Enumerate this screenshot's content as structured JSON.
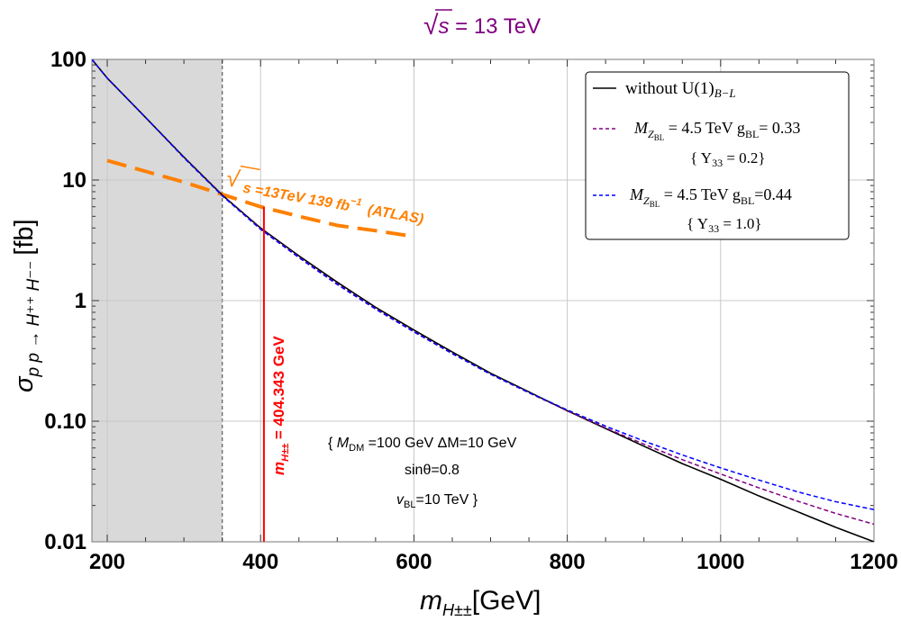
{
  "chart_data": {
    "type": "line",
    "title_sqrt_symbol": "√",
    "title_s": "s",
    "title_rest": " = 13 TeV",
    "xlabel_main": "m",
    "xlabel_sub": "H±±",
    "xlabel_unit": "[GeV]",
    "ylabel_sigma": "σ",
    "ylabel_sub": "p p → H⁺⁺ H⁻⁻",
    "ylabel_unit": "[fb]",
    "xlim": [
      180,
      1200
    ],
    "ylim": [
      0.01,
      100
    ],
    "yscale": "log",
    "grid": true,
    "x_ticks": [
      {
        "value": 200,
        "label": "200"
      },
      {
        "value": 400,
        "label": "400"
      },
      {
        "value": 600,
        "label": "600"
      },
      {
        "value": 800,
        "label": "800"
      },
      {
        "value": 1000,
        "label": "1000"
      },
      {
        "value": 1200,
        "label": "1200"
      }
    ],
    "y_ticks": [
      {
        "value": 0.01,
        "label": "0.01"
      },
      {
        "value": 0.1,
        "label": "0.10"
      },
      {
        "value": 1,
        "label": "1"
      },
      {
        "value": 10,
        "label": "10"
      },
      {
        "value": 100,
        "label": "100"
      }
    ],
    "excluded_region": {
      "x_min": 180,
      "x_max": 350
    },
    "series": [
      {
        "name": "without U(1)_{B−L}",
        "color": "#000000",
        "style": "solid",
        "x": [
          180,
          200,
          250,
          300,
          350,
          400,
          450,
          500,
          550,
          600,
          650,
          700,
          750,
          800,
          850,
          900,
          950,
          1000,
          1050,
          1100,
          1150,
          1200
        ],
        "y": [
          100,
          70,
          33,
          15.5,
          7.5,
          4.0,
          2.35,
          1.42,
          0.88,
          0.57,
          0.375,
          0.25,
          0.175,
          0.122,
          0.087,
          0.062,
          0.0445,
          0.033,
          0.024,
          0.0178,
          0.0132,
          0.01
        ]
      },
      {
        "name": "M_ZBL = 4.5 TeV g_BL = 0.33 {Y33 = 0.2}",
        "color": "#800080",
        "style": "dashed",
        "x": [
          180,
          200,
          250,
          300,
          350,
          400,
          450,
          500,
          550,
          600,
          650,
          700,
          750,
          800,
          850,
          900,
          950,
          1000,
          1050,
          1100,
          1150,
          1200
        ],
        "y": [
          100,
          70,
          33,
          15.4,
          7.45,
          3.95,
          2.3,
          1.38,
          0.86,
          0.555,
          0.365,
          0.245,
          0.172,
          0.122,
          0.088,
          0.0645,
          0.048,
          0.0365,
          0.028,
          0.0218,
          0.0172,
          0.014
        ]
      },
      {
        "name": "M_ZBL = 4.5 TeV g_BL=0.44 {Y33 = 1.0}",
        "color": "#0000ff",
        "style": "dashed",
        "x": [
          180,
          200,
          250,
          300,
          350,
          400,
          450,
          500,
          550,
          600,
          650,
          700,
          750,
          800,
          850,
          900,
          950,
          1000,
          1050,
          1100,
          1150,
          1200
        ],
        "y": [
          100,
          70,
          33,
          15.3,
          7.4,
          3.9,
          2.27,
          1.36,
          0.85,
          0.55,
          0.363,
          0.245,
          0.173,
          0.124,
          0.091,
          0.0685,
          0.0525,
          0.041,
          0.0325,
          0.026,
          0.0215,
          0.0185
        ]
      },
      {
        "name": "ATLAS √s=13TeV 139 fb⁻¹",
        "color": "#ff8000",
        "style": "dashed-thick",
        "x": [
          200,
          250,
          300,
          350,
          400,
          450,
          500,
          550,
          600
        ],
        "y": [
          14.5,
          11.8,
          9.6,
          7.6,
          6.0,
          5.0,
          4.2,
          3.8,
          3.4
        ]
      }
    ],
    "vertical_line": {
      "x": 404.343,
      "y_top": 6.0,
      "color": "#ff0000"
    },
    "annotations": {
      "atlas_sqrt": "√",
      "atlas_label": "s =13TeV 139 fb",
      "atlas_sup": "−1",
      "atlas_tag": "(ATLAS)",
      "mass_label_m": "m",
      "mass_label_sub": "H±±",
      "mass_label_value": " = 404.343 GeV",
      "param_line1_open": "{ ",
      "param_line1_M": "M",
      "param_line1_Msub": "DM",
      "param_line1_rest": " =100 GeV   ΔM=10 GeV",
      "param_line2": "sinθ=0.8",
      "param_line3_v": "v",
      "param_line3_sub": "BL",
      "param_line3_rest": "=10 TeV }"
    },
    "legend": {
      "position": "top-right",
      "entries": [
        {
          "line1": "without U(1)",
          "line1_sub": "B−L",
          "line2": ""
        },
        {
          "line1": "M",
          "line1_sub": "Z",
          "line1_subsub": "BL",
          "line1_rest": " = 4.5 TeV g",
          "line1_gsub": "BL",
          "line1_tail": "= 0.33",
          "line2": "{ Y",
          "line2_sub": "33",
          "line2_rest": " = 0.2}"
        },
        {
          "line1": "M",
          "line1_sub": "Z",
          "line1_subsub": "BL",
          "line1_rest": " = 4.5 TeV g",
          "line1_gsub": "BL",
          "line1_tail": "=0.44",
          "line2": "{ Y",
          "line2_sub": "33",
          "line2_rest": " = 1.0}"
        }
      ]
    }
  }
}
